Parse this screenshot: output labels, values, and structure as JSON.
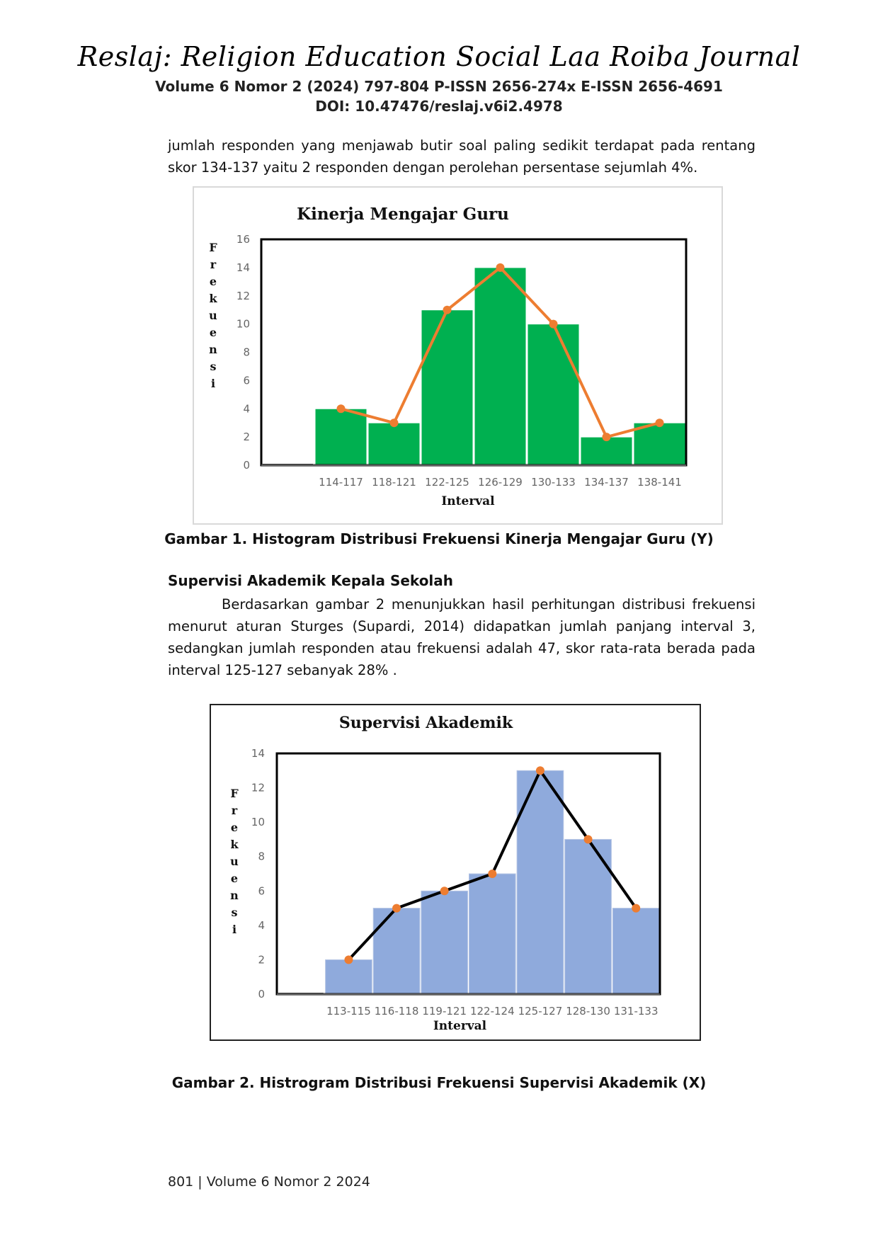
{
  "header": {
    "journal_title": "Reslaj: Religion Education Social Laa Roiba Journal",
    "volume_line": "Volume 6 Nomor 2 (2024)    797-804  P-ISSN 2656-274x E-ISSN 2656-4691",
    "doi": "DOI: 10.47476/reslaj.v6i2.4978"
  },
  "paragraph1": "jumlah responden yang menjawab butir soal paling sedikit terdapat pada rentang skor 134-137 yaitu 2 responden dengan perolehan persentase sejumlah 4%.",
  "figure1": {
    "caption": "Gambar 1. Histogram Distribusi Frekuensi Kinerja  Mengajar Guru (Y)"
  },
  "section_heading": "Supervisi Akademik Kepala Sekolah",
  "paragraph2": "Berdasarkan gambar 2 menunjukkan hasil perhitungan distribusi frekuensi menurut aturan Sturges (Supardi, 2014) didapatkan jumlah panjang interval 3, sedangkan jumlah responden atau frekuensi adalah 47, skor rata-rata berada pada interval 125-127 sebanyak 28% .",
  "figure2": {
    "caption": "Gambar 2. Histrogram Distribusi Frekuensi Supervisi Akademik (X)"
  },
  "footer": "801 | Volume 6 Nomor 2  2024",
  "chart_data": [
    {
      "type": "bar",
      "title": "Kinerja Mengajar Guru",
      "xlabel": "Interval",
      "ylabel": "Frekuensi",
      "ylim": [
        0,
        16
      ],
      "yticks": [
        0,
        2,
        4,
        6,
        8,
        10,
        12,
        14,
        16
      ],
      "categories": [
        "",
        "114-117",
        "118-121",
        "122-125",
        "126-129",
        "130-133",
        "134-137",
        "138-141"
      ],
      "values": [
        0,
        4,
        3,
        11,
        14,
        10,
        2,
        3
      ],
      "polygon": [
        null,
        4,
        3,
        11,
        14,
        10,
        2,
        3
      ],
      "bar_color": "#00b050",
      "line_color": "#ed7d31",
      "marker_color": "#ed7d31"
    },
    {
      "type": "bar",
      "title": "Supervisi Akademik",
      "xlabel": "Interval",
      "ylabel": "Frekuensi",
      "ylim": [
        0,
        14
      ],
      "yticks": [
        0,
        2,
        4,
        6,
        8,
        10,
        12,
        14
      ],
      "categories": [
        "",
        "113-115",
        "116-118",
        "119-121",
        "122-124",
        "125-127",
        "128-130",
        "131-133"
      ],
      "values": [
        0,
        2,
        5,
        6,
        7,
        13,
        9,
        5
      ],
      "polygon": [
        null,
        2,
        5,
        6,
        7,
        13,
        9,
        5
      ],
      "bar_color": "#8faadc",
      "line_color": "#000000",
      "marker_color": "#ed7d31"
    }
  ]
}
